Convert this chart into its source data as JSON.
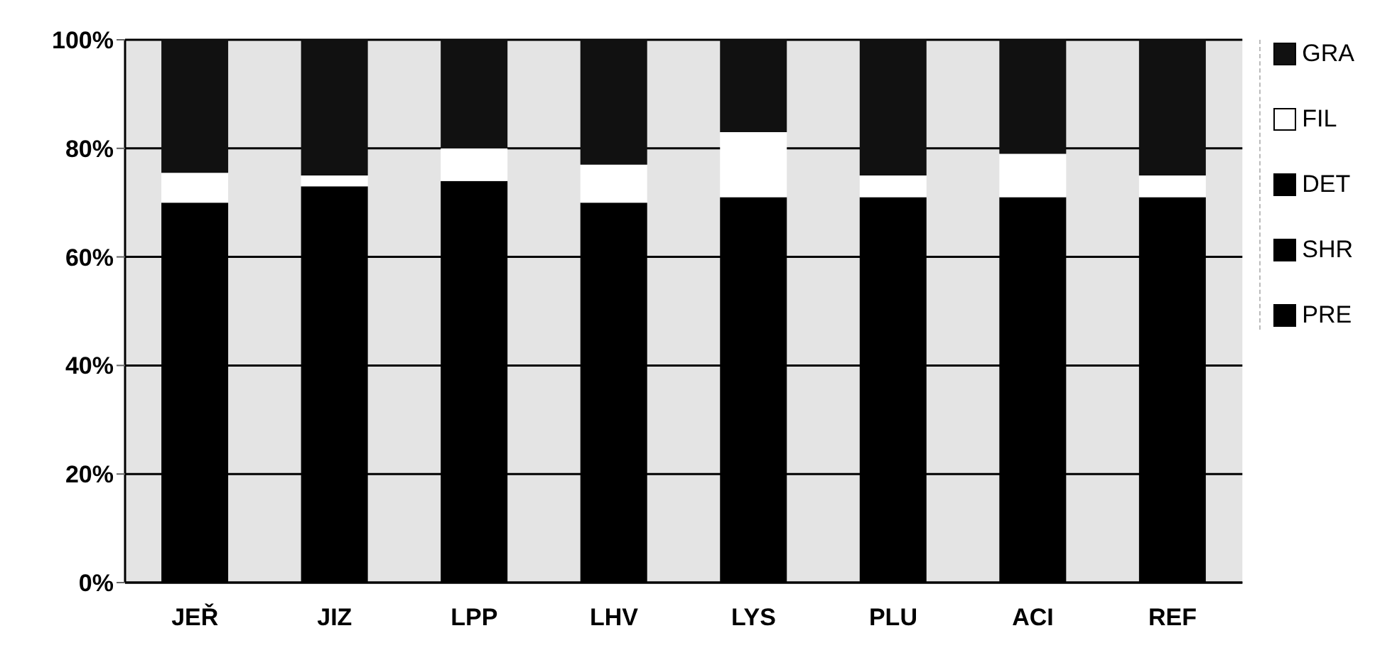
{
  "chart_data": {
    "type": "bar",
    "stacked": true,
    "categories": [
      "JEŘ",
      "JIZ",
      "LPP",
      "LHV",
      "LYS",
      "PLU",
      "ACI",
      "REF"
    ],
    "series": [
      {
        "name": "PRE",
        "color": "#000000",
        "values": [
          70,
          73,
          74,
          70,
          71,
          71,
          71,
          71
        ]
      },
      {
        "name": "SHR",
        "color": "#000000",
        "values": [
          null,
          null,
          null,
          null,
          null,
          null,
          null,
          null
        ]
      },
      {
        "name": "DET",
        "color": "#000000",
        "values": [
          null,
          null,
          null,
          null,
          null,
          null,
          null,
          null
        ]
      },
      {
        "name": "FIL",
        "color": "#ffffff",
        "values": [
          5.5,
          2,
          6,
          7,
          12,
          4,
          8,
          4
        ]
      },
      {
        "name": "GRA",
        "color": "#111111",
        "values": [
          24.5,
          25,
          20,
          23,
          17,
          25,
          21,
          25
        ]
      }
    ],
    "ylim": [
      0,
      100
    ],
    "yticks": [
      {
        "value": 0,
        "label": "0%"
      },
      {
        "value": 20,
        "label": "20%"
      },
      {
        "value": 40,
        "label": "40%"
      },
      {
        "value": 60,
        "label": "60%"
      },
      {
        "value": 80,
        "label": "80%"
      },
      {
        "value": 100,
        "label": "100%"
      }
    ],
    "grid": "y",
    "legend": "right"
  }
}
